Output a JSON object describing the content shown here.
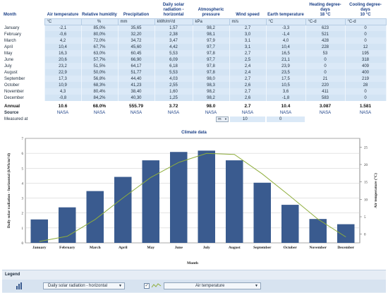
{
  "table": {
    "headers": {
      "month": "Month",
      "air_temperature": "Air temperature",
      "relative_humidity": "Relative humidity",
      "precipitation": "Precipitation",
      "daily_solar": "Daily solar radiation - horizontal",
      "atm_pressure": "Atmospheric pressure",
      "wind_speed": "Wind speed",
      "earth_temperature": "Earth temperature",
      "heating_dd": "Heating degree-days",
      "heating_dd_sub": "18 °C",
      "cooling_dd": "Cooling degree-days",
      "cooling_dd_sub": "10 °C"
    },
    "units": [
      "°C",
      "%",
      "mm",
      "kWh/m²/d",
      "kPa",
      "m/s",
      "°C",
      "°C-d",
      "°C-d"
    ],
    "rows": [
      {
        "month": "January",
        "cells": [
          "-2,1",
          "85,0%",
          "35,65",
          "1,57",
          "98,2",
          "2,7",
          "-3,3",
          "623",
          "0"
        ]
      },
      {
        "month": "February",
        "cells": [
          "-0,6",
          "80,0%",
          "32,20",
          "2,38",
          "98,1",
          "3,0",
          "-1,4",
          "521",
          "0"
        ]
      },
      {
        "month": "March",
        "cells": [
          "4,2",
          "72,0%",
          "34,72",
          "3,47",
          "97,9",
          "3,1",
          "4,0",
          "428",
          "0"
        ]
      },
      {
        "month": "April",
        "cells": [
          "10,4",
          "67,7%",
          "45,60",
          "4,42",
          "97,7",
          "3,1",
          "10,4",
          "228",
          "12"
        ]
      },
      {
        "month": "May",
        "cells": [
          "16,3",
          "63,0%",
          "60,45",
          "5,53",
          "97,8",
          "2,7",
          "16,5",
          "53",
          "195"
        ]
      },
      {
        "month": "June",
        "cells": [
          "20,6",
          "57,7%",
          "66,90",
          "6,09",
          "97,7",
          "2,5",
          "21,1",
          "0",
          "318"
        ]
      },
      {
        "month": "July",
        "cells": [
          "23,2",
          "51,5%",
          "64,17",
          "6,18",
          "97,8",
          "2,4",
          "23,9",
          "0",
          "409"
        ]
      },
      {
        "month": "August",
        "cells": [
          "22,9",
          "50,0%",
          "51,77",
          "5,53",
          "97,8",
          "2,4",
          "23,5",
          "0",
          "400"
        ]
      },
      {
        "month": "September",
        "cells": [
          "17,3",
          "56,8%",
          "44,40",
          "4,03",
          "98,0",
          "2,7",
          "17,5",
          "21",
          "219"
        ]
      },
      {
        "month": "October",
        "cells": [
          "10,9",
          "68,3%",
          "41,23",
          "2,55",
          "98,3",
          "2,6",
          "10,5",
          "220",
          "28"
        ]
      },
      {
        "month": "November",
        "cells": [
          "4,3",
          "80,4%",
          "38,40",
          "1,60",
          "98,2",
          "2,7",
          "3,6",
          "411",
          "0"
        ]
      },
      {
        "month": "December",
        "cells": [
          "-0,8",
          "84,2%",
          "40,30",
          "1,25",
          "98,2",
          "2,6",
          "-1,8",
          "583",
          "0"
        ]
      }
    ],
    "annual": {
      "label": "Annual",
      "cells": [
        "10.6",
        "68.0%",
        "555.79",
        "3.72",
        "98.0",
        "2.7",
        "10.4",
        "3.087",
        "1.581"
      ]
    },
    "source": {
      "label": "Source",
      "cells": [
        "NASA",
        "NASA",
        "NASA",
        "NASA",
        "NASA",
        "NASA",
        "NASA",
        "NASA",
        "NASA"
      ]
    },
    "measured": {
      "label": "Measured at",
      "unit": "m",
      "wind_value": "10",
      "earth_value": "0"
    }
  },
  "chart_title": "Climate data",
  "chart_data": {
    "type": "bar",
    "categories": [
      "January",
      "February",
      "March",
      "April",
      "May",
      "June",
      "July",
      "August",
      "September",
      "October",
      "November",
      "December"
    ],
    "series": [
      {
        "name": "Daily solar radiation - horizontal",
        "type": "bar",
        "axis": "left",
        "color": "#3a5b8f",
        "values": [
          1.57,
          2.38,
          3.47,
          4.42,
          5.53,
          6.09,
          6.18,
          5.53,
          4.03,
          2.55,
          1.6,
          1.25
        ]
      },
      {
        "name": "Air temperature",
        "type": "line",
        "axis": "right",
        "color": "#8fae3c",
        "values": [
          -2.1,
          -0.6,
          4.2,
          10.4,
          16.3,
          20.6,
          23.2,
          22.9,
          17.3,
          10.9,
          4.3,
          -0.8
        ]
      }
    ],
    "xlabel": "Month",
    "ylabel": "Daily solar radiation - horizontal (kWh/m²/d)",
    "y2label": "Air temperature (°C)",
    "ylim": [
      0,
      7
    ],
    "yticks": [
      0,
      1,
      2,
      3,
      4,
      5,
      6,
      7
    ],
    "y2lim": [
      -2.5,
      27.5
    ],
    "y2ticks": [
      0,
      5,
      10,
      15,
      20,
      25
    ],
    "grid": true
  },
  "legend": {
    "title": "Legend",
    "left_select": "Daily solar radiation - horizontal",
    "right_select": "Air temperature",
    "right_checked": "✓",
    "bar_icon": "bar-chart-icon",
    "line_icon": "line-chart-icon"
  }
}
